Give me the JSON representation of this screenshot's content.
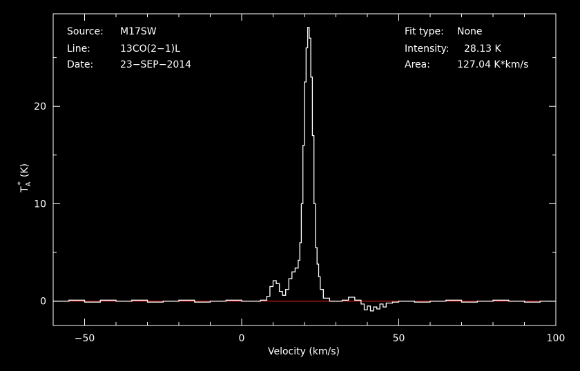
{
  "chart_data": {
    "type": "line",
    "title": "",
    "xlabel": "Velocity (km/s)",
    "ylabel": "T*A (K)",
    "ylabel_main": "T",
    "ylabel_sub": "A",
    "ylabel_sup": "*",
    "ylabel_unit": "(K)",
    "xlim": [
      -60,
      100
    ],
    "ylim": [
      -2.5,
      29.5
    ],
    "xticks": [
      -50,
      0,
      50,
      100
    ],
    "xtick_labels": [
      "−50",
      "0",
      "50",
      "100"
    ],
    "yticks": [
      0,
      10,
      20
    ],
    "ytick_labels": [
      "0",
      "10",
      "20"
    ],
    "grid": false,
    "colors": {
      "background": "#000000",
      "axes": "#ffffff",
      "spectrum": "#ffffff",
      "baseline": "#ff2020"
    },
    "info_left": [
      {
        "key": "Source:",
        "value": "M17SW"
      },
      {
        "key": "Line:",
        "value": "13CO(2−1)L"
      },
      {
        "key": "Date:",
        "value": "23−SEP−2014"
      }
    ],
    "info_right": [
      {
        "key": "Fit type:",
        "value": "None"
      },
      {
        "key": "Intensity:",
        "value": "28.13 K"
      },
      {
        "key": "Area:",
        "value": "127.04 K*km/s"
      }
    ],
    "series": [
      {
        "values_x": [
          -60,
          -55,
          -50,
          -45,
          -40,
          -35,
          -30,
          -25,
          -20,
          -15,
          -10,
          -5,
          0,
          4,
          6,
          8,
          9,
          10,
          11,
          12,
          13,
          14,
          15,
          16,
          17,
          18,
          18.5,
          19,
          19.5,
          20,
          20.5,
          21,
          21.5,
          22,
          22.5,
          23,
          23.5,
          24,
          24.5,
          25,
          26,
          28,
          30,
          32,
          34,
          36,
          38,
          39,
          40,
          41,
          42,
          43,
          44,
          45,
          46,
          48,
          50,
          55,
          60,
          65,
          70,
          75,
          80,
          85,
          90,
          95,
          100
        ],
        "values_y": [
          0,
          0.1,
          -0.1,
          0.1,
          0,
          0.1,
          -0.1,
          0,
          0.1,
          -0.1,
          0,
          0.1,
          0,
          0,
          0.1,
          0.5,
          1.5,
          2.1,
          1.8,
          1.0,
          0.6,
          1.2,
          2.3,
          3.0,
          3.4,
          4.2,
          6.0,
          10.0,
          16.0,
          22.5,
          26.0,
          28.1,
          27.0,
          23.0,
          17.0,
          10.0,
          5.5,
          3.8,
          2.5,
          1.2,
          0.3,
          0,
          0,
          0.1,
          0.4,
          0.1,
          -0.3,
          -0.9,
          -0.5,
          -1.0,
          -0.6,
          -0.8,
          -0.3,
          -0.6,
          -0.2,
          -0.1,
          0,
          -0.1,
          0,
          0.1,
          -0.1,
          0,
          0.1,
          0,
          -0.1,
          0,
          0
        ]
      }
    ],
    "baseline": {
      "y": 0,
      "x": [
        -60,
        100
      ]
    }
  }
}
